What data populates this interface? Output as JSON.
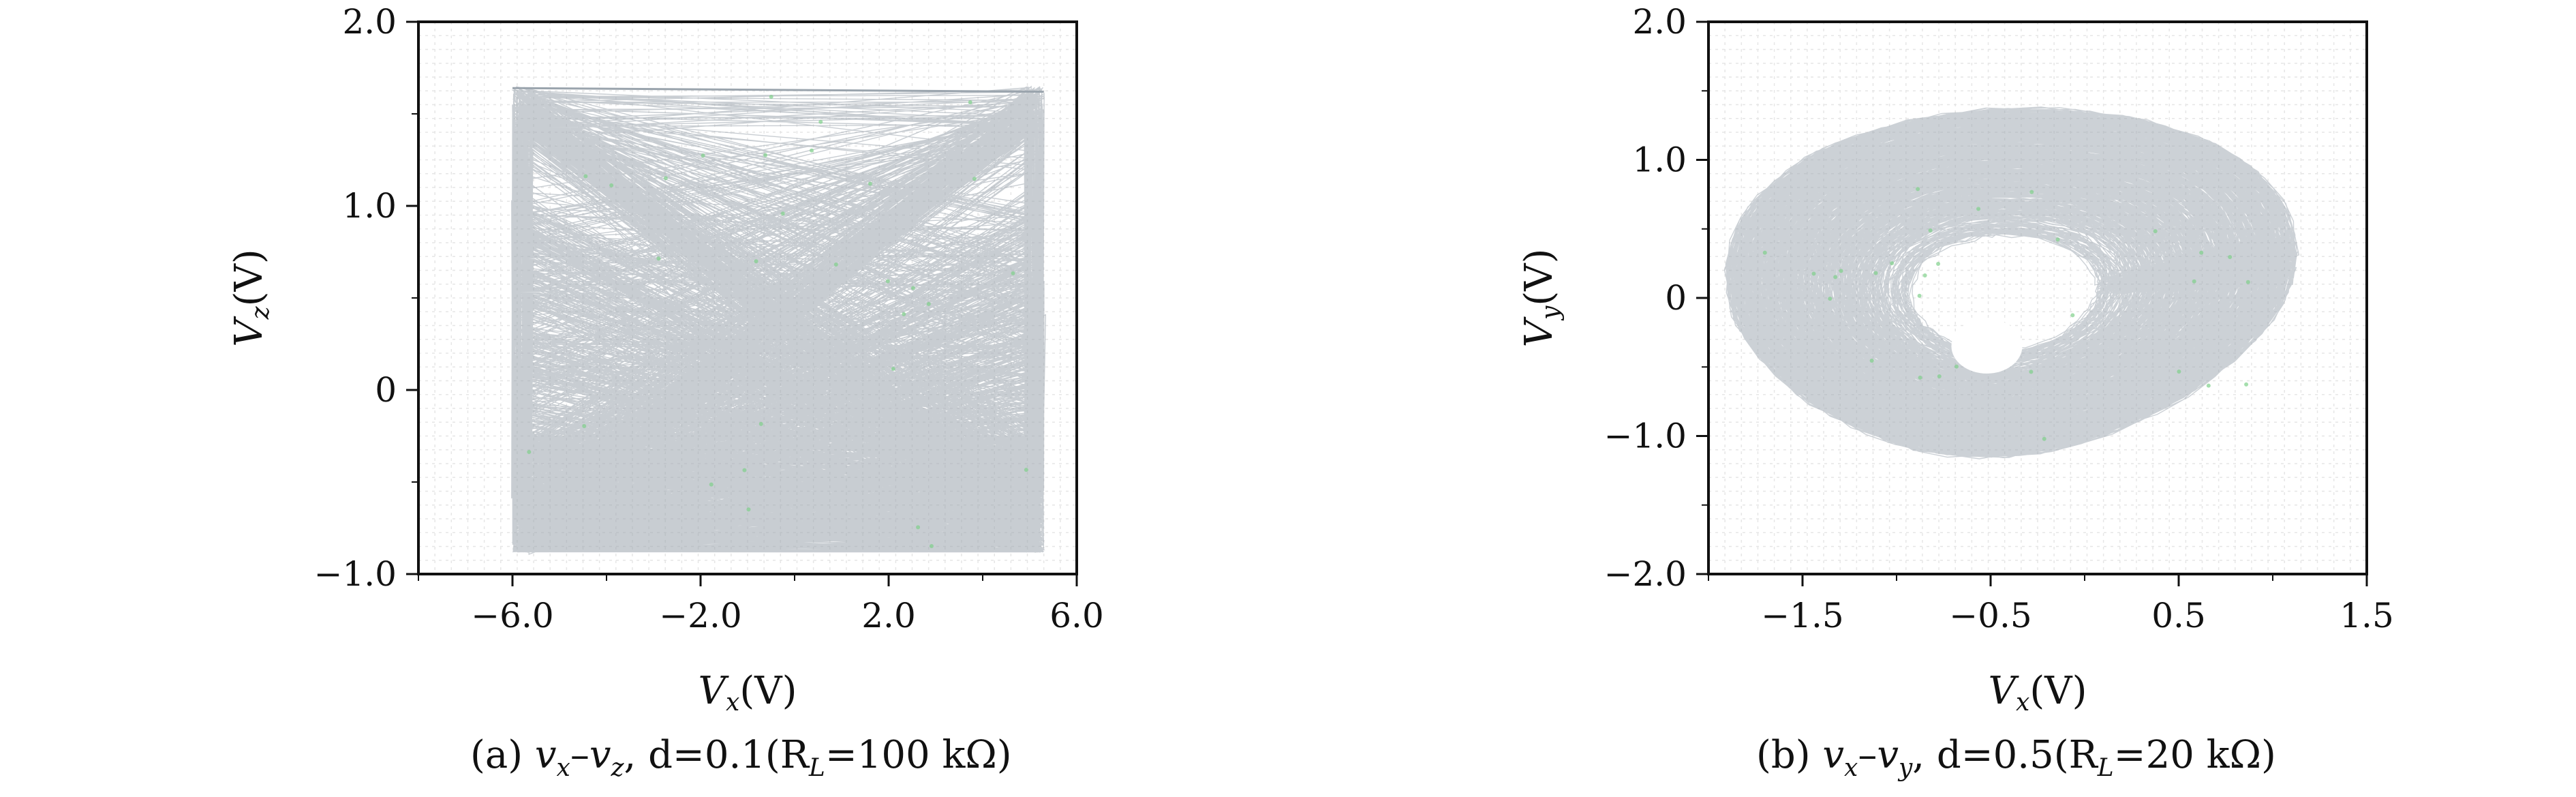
{
  "chart_data": [
    {
      "type": "line",
      "panel_label": "(a)",
      "caption": "(a) v_x–v_z, d=0.1(R_L=100 kΩ)",
      "caption_parts": {
        "label": "(a)",
        "vars": "v",
        "sub1": "x",
        "dash": "–",
        "v2": "v",
        "sub2": "z",
        "param": ", d=0.1(R",
        "sub3": "L",
        "rest": "=100 kΩ)"
      },
      "xlabel": {
        "var": "V",
        "sub": "x",
        "unit": "(V)"
      },
      "ylabel": {
        "var": "V",
        "sub": "z",
        "unit": "(V)"
      },
      "xlim": [
        -8.0,
        6.0
      ],
      "ylim": [
        -1.0,
        2.0
      ],
      "xticks": [
        -6.0,
        -2.0,
        2.0,
        6.0
      ],
      "xtick_labels": [
        "−6.0",
        "−2.0",
        "2.0",
        "6.0"
      ],
      "yticks": [
        -1.0,
        0,
        1.0,
        2.0
      ],
      "ytick_labels": [
        "−1.0",
        "0",
        "1.0",
        "2.0"
      ],
      "grid": true,
      "trajectory": {
        "description_kind": "chaotic attractor, rectangular",
        "x_range": [
          -6.0,
          5.3
        ],
        "y_range": [
          -0.9,
          1.65
        ],
        "dense_band_y": [
          -0.9,
          -0.3
        ]
      },
      "color": "#9aa4ad",
      "point_color": "#7fd08a"
    },
    {
      "type": "line",
      "panel_label": "(b)",
      "caption": "(b) v_x–v_y, d=0.5(R_L=20 kΩ)",
      "caption_parts": {
        "label": "(b)",
        "vars": "v",
        "sub1": "x",
        "dash": "–",
        "v2": "v",
        "sub2": "y",
        "param": ", d=0.5(R",
        "sub3": "L",
        "rest": "=20 kΩ)"
      },
      "xlabel": {
        "var": "V",
        "sub": "x",
        "unit": "(V)"
      },
      "ylabel": {
        "var": "V",
        "sub": "y",
        "unit": "(V)"
      },
      "xlim": [
        -2.0,
        1.5
      ],
      "ylim": [
        -2.0,
        2.0
      ],
      "xticks": [
        -1.5,
        -0.5,
        0.5,
        1.5
      ],
      "xtick_labels": [
        "−1.5",
        "−0.5",
        "0.5",
        "1.5"
      ],
      "yticks": [
        -2.0,
        -1.0,
        0,
        1.0,
        2.0
      ],
      "ytick_labels": [
        "−2.0",
        "−1.0",
        "0",
        "1.0",
        "2.0"
      ],
      "grid": true,
      "trajectory": {
        "description_kind": "chaotic attractor, spiral",
        "center": [
          -0.45,
          0.0
        ],
        "x_range": [
          -1.7,
          1.45
        ],
        "y_range": [
          -1.2,
          1.4
        ]
      },
      "color": "#9aa4ad",
      "point_color": "#7fd08a"
    }
  ]
}
